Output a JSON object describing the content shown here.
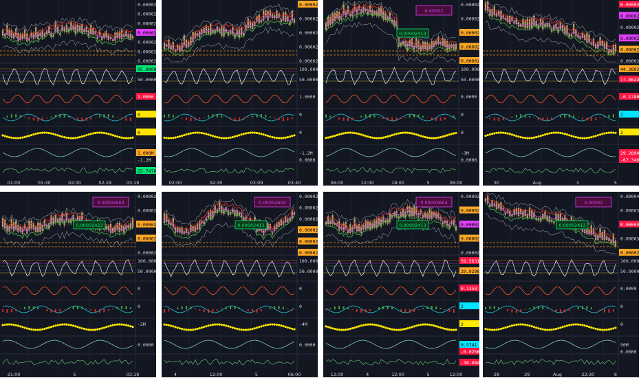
{
  "colors": {
    "bg": "#131722",
    "grid": "#2a2e39",
    "axis_text": "#d1d4dc",
    "price_line": "#9aa0a6",
    "ma_red": "#d32f2f",
    "ma_purple": "#ab47bc",
    "ma_green": "#43a047",
    "candle": "#b59a6a",
    "bands": "#8a8f98",
    "orange_dash": "#ff9800",
    "yellow": "#ffe600",
    "label_green": "#00e676",
    "label_magenta": "#e040fb",
    "label_red": "#ff1744",
    "label_orange": "#ffa726",
    "label_cyan": "#00e5ff"
  },
  "panels": [
    {
      "id": "p1",
      "trend": "flat",
      "bubble": null,
      "box": null,
      "price_labels": [
        {
          "text": "0.00002440",
          "style": "plain"
        },
        {
          "text": "0.00002430",
          "style": "plain"
        },
        {
          "text": "0.00002420",
          "style": "plain"
        },
        {
          "text": "0.00002415",
          "style": "magenta"
        },
        {
          "text": "0.00002410",
          "style": "plain"
        },
        {
          "text": "0.00002400",
          "style": "plain"
        },
        {
          "text": "0.00002390",
          "style": "plain"
        }
      ],
      "ind_labels": [
        {
          "text": "95.0000",
          "style": "green"
        },
        {
          "text": "50.0000",
          "style": "plain"
        },
        {
          "text": "1.0000",
          "style": "red"
        },
        {
          "text": "0",
          "style": "yellow"
        },
        {
          "text": "0",
          "style": "yellow"
        },
        {
          "text": "1.000M",
          "style": "orange"
        },
        {
          "text": "-1.2M",
          "style": "plain"
        },
        {
          "text": "25.7478",
          "style": "green"
        }
      ],
      "time_labels": [
        "01:00",
        "01:30",
        "02:00",
        "02:29",
        "03:19"
      ]
    },
    {
      "id": "p2",
      "trend": "up",
      "bubble": null,
      "box": null,
      "price_labels": [
        {
          "text": "0.00002423",
          "style": "orange"
        },
        {
          "text": "0.00002420",
          "style": "plain"
        },
        {
          "text": "0.00002410",
          "style": "plain"
        },
        {
          "text": "0.00002400",
          "style": "plain"
        },
        {
          "text": "0.00002390",
          "style": "plain"
        }
      ],
      "ind_labels": [
        {
          "text": "100.0000",
          "style": "plain"
        },
        {
          "text": "50.0000",
          "style": "plain"
        },
        {
          "text": "1.0000",
          "style": "plain"
        },
        {
          "text": "0",
          "style": "plain"
        },
        {
          "text": "0",
          "style": "plain"
        },
        {
          "text": "-1.2M",
          "style": "plain"
        },
        {
          "text": "0.0000",
          "style": "plain"
        }
      ],
      "time_labels": [
        "02:00",
        "02:30",
        "03:09",
        "03:40"
      ]
    },
    {
      "id": "p3",
      "trend": "peakdrop",
      "bubble": "0.00002",
      "box": "0.00002413",
      "price_labels": [
        {
          "text": "0.00002600",
          "style": "plain"
        },
        {
          "text": "0.00002500",
          "style": "plain"
        },
        {
          "text": "0.00002423",
          "style": "orange"
        },
        {
          "text": "0.00002377",
          "style": "orange"
        },
        {
          "text": "0.00002294",
          "style": "orange"
        }
      ],
      "ind_labels": [
        {
          "text": "100.0000",
          "style": "plain"
        },
        {
          "text": "50.0000",
          "style": "plain"
        },
        {
          "text": "0.0000",
          "style": "plain"
        },
        {
          "text": "0",
          "style": "plain"
        },
        {
          "text": "0",
          "style": "plain"
        },
        {
          "text": "-3M",
          "style": "plain"
        },
        {
          "text": "0.0000",
          "style": "plain"
        }
      ],
      "time_labels": [
        "06:00",
        "12:00",
        "18:00",
        "5",
        "06:00"
      ]
    },
    {
      "id": "p4",
      "trend": "down",
      "bubble": null,
      "box": null,
      "price_labels": [
        {
          "text": "0.00003383",
          "style": "red"
        },
        {
          "text": "0.00002888",
          "style": "magenta"
        },
        {
          "text": "0.00002684",
          "style": "plain"
        },
        {
          "text": "0.00002517",
          "style": "magenta"
        },
        {
          "text": "0.00002423",
          "style": "orange"
        },
        {
          "text": "0.00002329",
          "style": "plain"
        }
      ],
      "ind_labels": [
        {
          "text": "44.2802",
          "style": "orange"
        },
        {
          "text": "17.8623",
          "style": "red"
        },
        {
          "text": "-0.1780",
          "style": "red"
        },
        {
          "text": "2",
          "style": "cyan"
        },
        {
          "text": "2",
          "style": "yellow"
        },
        {
          "text": "29.2894",
          "style": "red"
        },
        {
          "text": "-67.3466",
          "style": "red"
        }
      ],
      "time_labels": [
        "30",
        "Aug",
        "3",
        "5"
      ]
    },
    {
      "id": "p5",
      "trend": "flat",
      "bubble": "0.00002604",
      "box": "0.00002423",
      "price_labels": [
        {
          "text": "0.00002600",
          "style": "plain"
        },
        {
          "text": "0.00002500",
          "style": "plain"
        },
        {
          "text": "0.00002423",
          "style": "orange"
        },
        {
          "text": "0.00002377",
          "style": "orange"
        },
        {
          "text": "0.00002300",
          "style": "plain"
        }
      ],
      "ind_labels": [
        {
          "text": "100.0000",
          "style": "plain"
        },
        {
          "text": "50.0000",
          "style": "plain"
        },
        {
          "text": "0",
          "style": "plain"
        },
        {
          "text": "0",
          "style": "plain"
        },
        {
          "text": "-2M",
          "style": "plain"
        },
        {
          "text": "0.0000",
          "style": "plain"
        }
      ],
      "time_labels": [
        "21:00",
        "5",
        "03:19"
      ]
    },
    {
      "id": "p6",
      "trend": "bumpy",
      "bubble": "0.00002604",
      "box": "0.00002413",
      "price_labels": [
        {
          "text": "0.00002700",
          "style": "plain"
        },
        {
          "text": "0.00002600",
          "style": "plain"
        },
        {
          "text": "0.00002500",
          "style": "plain"
        },
        {
          "text": "0.00002423",
          "style": "orange"
        },
        {
          "text": "0.00002377",
          "style": "orange"
        },
        {
          "text": "0.00002294",
          "style": "orange"
        }
      ],
      "ind_labels": [
        {
          "text": "100.0000",
          "style": "plain"
        },
        {
          "text": "50.0000",
          "style": "plain"
        },
        {
          "text": "0",
          "style": "plain"
        },
        {
          "text": "0",
          "style": "plain"
        },
        {
          "text": "-4M",
          "style": "plain"
        },
        {
          "text": "0.0000",
          "style": "plain"
        }
      ],
      "time_labels": [
        "4",
        "12:00",
        "5",
        "06:00"
      ]
    },
    {
      "id": "p7",
      "trend": "humps",
      "bubble": "0.00002604",
      "box": "0.00002413",
      "price_labels": [
        {
          "text": "0.00002638",
          "style": "plain"
        },
        {
          "text": "0.00002521",
          "style": "orange"
        },
        {
          "text": "0.00002457",
          "style": "magenta"
        },
        {
          "text": "0.00002377",
          "style": "orange"
        },
        {
          "text": "0.00002294",
          "style": "plain"
        }
      ],
      "ind_labels": [
        {
          "text": "59.5631",
          "style": "red"
        },
        {
          "text": "29.9298",
          "style": "orange"
        },
        {
          "text": "0.1358",
          "style": "red"
        },
        {
          "text": "2",
          "style": "cyan"
        },
        {
          "text": "2",
          "style": "yellow"
        },
        {
          "text": "0.5741",
          "style": "cyan"
        },
        {
          "text": "-0.0256",
          "style": "red"
        },
        {
          "text": "-38.0840",
          "style": "red"
        }
      ],
      "time_labels": [
        "12:00",
        "4",
        "12:00",
        "5",
        "12:00"
      ]
    },
    {
      "id": "p8",
      "trend": "down",
      "bubble": "0.00002",
      "box": "0.00002413",
      "price_labels": [
        {
          "text": "0.00004000",
          "style": "plain"
        },
        {
          "text": "0.00003500",
          "style": "plain"
        },
        {
          "text": "0.00003383",
          "style": "red"
        },
        {
          "text": "0.00003000",
          "style": "plain"
        },
        {
          "text": "0.00002314",
          "style": "orange"
        }
      ],
      "ind_labels": [
        {
          "text": "100.0000",
          "style": "plain"
        },
        {
          "text": "50.0000",
          "style": "plain"
        },
        {
          "text": "0.0000",
          "style": "plain"
        },
        {
          "text": "0",
          "style": "plain"
        },
        {
          "text": "0",
          "style": "plain"
        },
        {
          "text": "50M",
          "style": "plain"
        },
        {
          "text": "0.0000",
          "style": "plain"
        }
      ],
      "time_labels": [
        "28",
        "29",
        "Aug",
        "22:30",
        "6"
      ]
    }
  ]
}
